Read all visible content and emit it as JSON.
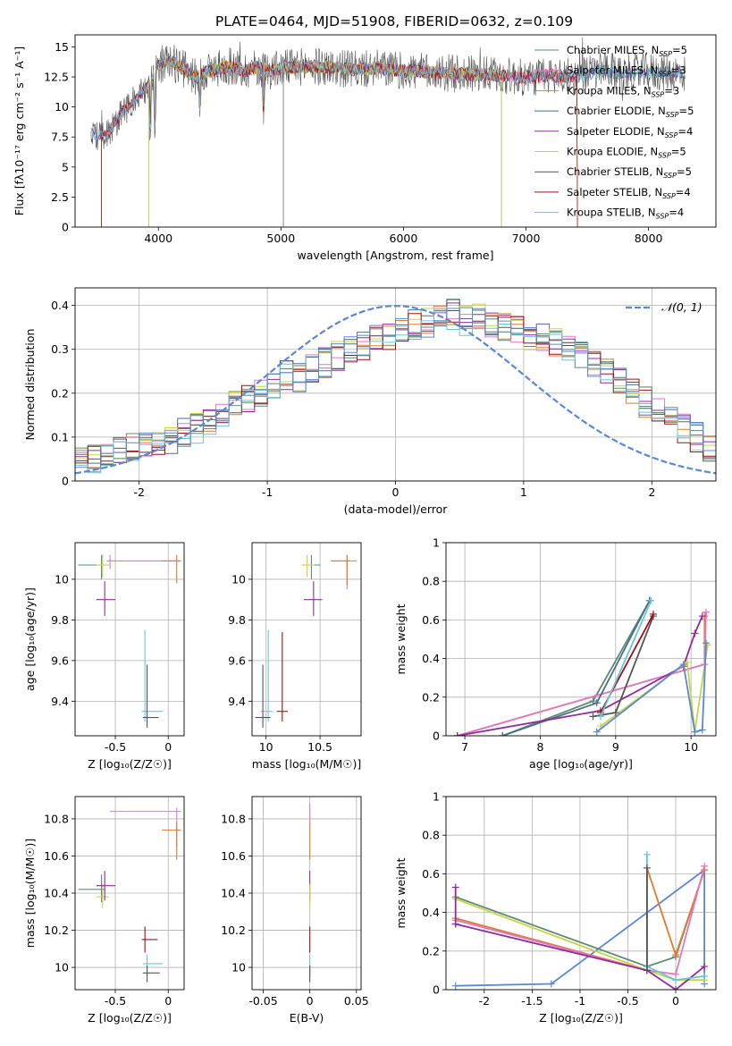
{
  "title": "PLATE=0464, MJD=51908, FIBERID=0632, z=0.109",
  "colors": {
    "series": [
      "#5b8a72",
      "#e377c2",
      "#e07a2d",
      "#4b6f8a",
      "#8e2c9c",
      "#c7d447",
      "#555555",
      "#a01010",
      "#66c6d6"
    ],
    "gaussian": "#5a87d4",
    "grid": "#b0b0b0"
  },
  "chart_data": [
    {
      "type": "line",
      "name": "spectrum",
      "xlabel": "wavelength [Angstrom, rest frame]",
      "ylabel": "Flux [fλ10⁻¹⁷ erg cm⁻² s⁻¹ A⁻¹]",
      "xlim": [
        3320,
        8550
      ],
      "ylim": [
        0,
        16
      ],
      "xticks": [
        4000,
        5000,
        6000,
        7000,
        8000
      ],
      "yticks": [
        0.0,
        2.5,
        5.0,
        7.5,
        10.0,
        12.5,
        15.0
      ],
      "grid": false,
      "legend_position": "top-right",
      "x": [
        3450,
        3500,
        3600,
        3700,
        3800,
        3900,
        4000,
        4100,
        4200,
        4300,
        4400,
        4500,
        4600,
        4700,
        4800,
        4900,
        5000,
        5200,
        5400,
        5600,
        5800,
        6000,
        6200,
        6400,
        6600,
        6800,
        7000,
        7200,
        7400,
        7600,
        7800,
        8000,
        8300
      ],
      "y": [
        8.0,
        7.5,
        7.8,
        9.5,
        10.5,
        11.5,
        13.5,
        13.8,
        13.2,
        12.5,
        13.0,
        13.2,
        13.4,
        13.0,
        13.3,
        13.0,
        13.2,
        13.4,
        13.3,
        13.1,
        13.2,
        13.0,
        12.9,
        12.8,
        12.7,
        12.6,
        12.4,
        12.6,
        12.5,
        13.0,
        12.8,
        12.9,
        12.8
      ],
      "series": [
        {
          "name": "Chabrier MILES, N_SSP=5",
          "label_main": "Chabrier MILES, N",
          "label_sub": "SSP",
          "label_tail": "=5"
        },
        {
          "name": "Salpeter MILES, N_SSP=3",
          "label_main": "Salpeter MILES, N",
          "label_sub": "SSP",
          "label_tail": "=3"
        },
        {
          "name": "Kroupa MILES, N_SSP=3",
          "label_main": "Kroupa MILES, N",
          "label_sub": "SSP",
          "label_tail": "=3"
        },
        {
          "name": "Chabrier ELODIE, N_SSP=5",
          "label_main": "Chabrier ELODIE, N",
          "label_sub": "SSP",
          "label_tail": "=5"
        },
        {
          "name": "Salpeter ELODIE, N_SSP=4",
          "label_main": "Salpeter ELODIE, N",
          "label_sub": "SSP",
          "label_tail": "=4"
        },
        {
          "name": "Kroupa ELODIE, N_SSP=5",
          "label_main": "Kroupa ELODIE, N",
          "label_sub": "SSP",
          "label_tail": "=5"
        },
        {
          "name": "Chabrier STELIB, N_SSP=5",
          "label_main": "Chabrier STELIB, N",
          "label_sub": "SSP",
          "label_tail": "=5"
        },
        {
          "name": "Salpeter STELIB, N_SSP=4",
          "label_main": "Salpeter STELIB, N",
          "label_sub": "SSP",
          "label_tail": "=4"
        },
        {
          "name": "Kroupa STELIB, N_SSP=4",
          "label_main": "Kroupa STELIB, N",
          "label_sub": "SSP",
          "label_tail": "=4"
        }
      ],
      "range_edges": [
        {
          "series": 2,
          "start": 3535,
          "end": 7420
        },
        {
          "series": 1,
          "start": 3535,
          "end": 7420
        },
        {
          "series": 5,
          "start": 3920,
          "end": 6800
        },
        {
          "series": 3,
          "start": 3920,
          "end": 6800
        },
        {
          "series": 7,
          "start": 3535,
          "end": 7420
        }
      ]
    },
    {
      "type": "histogram",
      "name": "residuals",
      "xlabel": "(data-model)/error",
      "ylabel": "Normed distribution",
      "xlim": [
        -2.5,
        2.5
      ],
      "ylim": [
        0,
        0.44
      ],
      "xticks": [
        -2,
        -1,
        0,
        1,
        2
      ],
      "yticks": [
        0.0,
        0.1,
        0.2,
        0.3,
        0.4
      ],
      "grid": true,
      "legend_position": "top-right",
      "legend": "𝒩(0, 1)",
      "bin_width": 0.1,
      "x_start": -2.5,
      "values": [
        0.045,
        0.05,
        0.06,
        0.075,
        0.08,
        0.09,
        0.085,
        0.095,
        0.11,
        0.12,
        0.14,
        0.155,
        0.17,
        0.19,
        0.205,
        0.22,
        0.24,
        0.235,
        0.255,
        0.27,
        0.285,
        0.3,
        0.31,
        0.32,
        0.33,
        0.34,
        0.355,
        0.36,
        0.37,
        0.38,
        0.365,
        0.37,
        0.36,
        0.35,
        0.34,
        0.33,
        0.33,
        0.315,
        0.3,
        0.29,
        0.26,
        0.245,
        0.225,
        0.2,
        0.18,
        0.155,
        0.135,
        0.12,
        0.1,
        0.08
      ],
      "jitter": 0.035
    },
    {
      "type": "errorbar",
      "name": "age-vs-Z",
      "xlabel": "Z [log₁₀(Z/Z☉)]",
      "ylabel": "age  [log₁₀(age/yr)]",
      "xlim": [
        -0.88,
        0.15
      ],
      "ylim": [
        9.23,
        10.18
      ],
      "xticks": [
        -0.5,
        0.0
      ],
      "yticks": [
        9.4,
        9.6,
        9.8,
        10.0
      ],
      "grid": true,
      "points": [
        {
          "c": 0,
          "x": -0.63,
          "y": 10.07,
          "xe": [
            -0.85,
            -0.6
          ],
          "ye": [
            10.0,
            10.12
          ]
        },
        {
          "c": 5,
          "x": -0.62,
          "y": 10.07,
          "xe": [
            -0.68,
            -0.56
          ],
          "ye": [
            10.01,
            10.12
          ]
        },
        {
          "c": 4,
          "x": -0.6,
          "y": 9.9,
          "xe": [
            -0.68,
            -0.5
          ],
          "ye": [
            9.82,
            9.99
          ]
        },
        {
          "c": 1,
          "x": -0.55,
          "y": 10.09,
          "xe": [
            -0.58,
            0.12
          ],
          "ye": [
            10.05,
            10.12
          ]
        },
        {
          "c": 2,
          "x": 0.08,
          "y": 10.09,
          "xe": [
            -0.06,
            0.12
          ],
          "ye": [
            9.98,
            10.12
          ]
        },
        {
          "c": 8,
          "x": -0.22,
          "y": 9.35,
          "xe": [
            -0.25,
            -0.05
          ],
          "ye": [
            9.3,
            9.75
          ]
        },
        {
          "c": 6,
          "x": -0.2,
          "y": 9.32,
          "xe": [
            -0.24,
            -0.09
          ],
          "ye": [
            9.27,
            9.58
          ]
        }
      ]
    },
    {
      "type": "errorbar",
      "name": "age-vs-mass",
      "xlabel": "mass [log₁₀(M/M☉)]",
      "ylabel": "",
      "xlim": [
        9.87,
        10.88
      ],
      "ylim": [
        9.23,
        10.18
      ],
      "xticks": [
        10.0,
        10.5
      ],
      "yticks": [
        9.4,
        9.6,
        9.8,
        10.0
      ],
      "grid": true,
      "points": [
        {
          "c": 0,
          "x": 10.42,
          "y": 10.07,
          "xe": [
            10.35,
            10.5
          ],
          "ye": [
            10.0,
            10.12
          ]
        },
        {
          "c": 5,
          "x": 10.38,
          "y": 10.07,
          "xe": [
            10.33,
            10.45
          ],
          "ye": [
            10.01,
            10.12
          ]
        },
        {
          "c": 4,
          "x": 10.44,
          "y": 9.9,
          "xe": [
            10.35,
            10.52
          ],
          "ye": [
            9.82,
            9.99
          ]
        },
        {
          "c": 1,
          "x": 10.75,
          "y": 10.09,
          "xe": [
            10.6,
            10.84
          ],
          "ye": [
            9.95,
            10.12
          ]
        },
        {
          "c": 2,
          "x": 10.75,
          "y": 10.09,
          "xe": [
            10.6,
            10.78
          ],
          "ye": [
            9.97,
            10.12
          ]
        },
        {
          "c": 8,
          "x": 10.02,
          "y": 9.35,
          "xe": [
            9.95,
            10.06
          ],
          "ye": [
            9.3,
            9.75
          ]
        },
        {
          "c": 7,
          "x": 10.15,
          "y": 9.35,
          "xe": [
            10.1,
            10.2
          ],
          "ye": [
            9.3,
            9.74
          ]
        },
        {
          "c": 6,
          "x": 9.97,
          "y": 9.32,
          "xe": [
            9.9,
            10.04
          ],
          "ye": [
            9.27,
            9.58
          ]
        }
      ]
    },
    {
      "type": "line",
      "name": "weight-vs-age",
      "xlabel": "age  [log₁₀(age/yr)]",
      "ylabel": "mass weight",
      "xlim": [
        6.75,
        10.33
      ],
      "ylim": [
        0.0,
        1.0
      ],
      "xticks": [
        7,
        8,
        9,
        10
      ],
      "yticks": [
        0.0,
        0.2,
        0.4,
        0.6,
        0.8,
        1.0
      ],
      "grid": true,
      "series": [
        {
          "c": 0,
          "x": [
            7.5,
            8.7,
            9.45
          ],
          "y": [
            0.0,
            0.18,
            0.7
          ]
        },
        {
          "c": 2,
          "x": [
            6.9,
            10.18,
            10.18
          ],
          "y": [
            0.0,
            0.37,
            0.62
          ]
        },
        {
          "c": 1,
          "x": [
            6.9,
            10.18,
            10.2
          ],
          "y": [
            0.0,
            0.37,
            0.64
          ]
        },
        {
          "c": 3,
          "x": [
            7.5,
            8.75,
            9.45
          ],
          "y": [
            0.0,
            0.17,
            0.7
          ]
        },
        {
          "c": 4,
          "x": [
            6.9,
            8.8,
            9.9,
            10.05,
            10.15
          ],
          "y": [
            0.0,
            0.13,
            0.36,
            0.53,
            0.62
          ]
        },
        {
          "c": 5,
          "x": [
            8.8,
            9.95,
            10.05,
            10.22
          ],
          "y": [
            0.05,
            0.38,
            0.02,
            0.47
          ]
        },
        {
          "c": 6,
          "x": [
            8.7,
            9.0,
            9.5
          ],
          "y": [
            0.1,
            0.12,
            0.62
          ]
        },
        {
          "c": 7,
          "x": [
            8.8,
            9.5
          ],
          "y": [
            0.12,
            0.63
          ]
        },
        {
          "c": 8,
          "x": [
            8.8,
            9.47
          ],
          "y": [
            0.1,
            0.7
          ]
        },
        {
          "c": 9,
          "x": [
            8.75,
            9.9,
            10.05,
            10.15,
            10.2
          ],
          "y": [
            0.02,
            0.37,
            0.02,
            0.03,
            0.48
          ]
        }
      ]
    },
    {
      "type": "errorbar",
      "name": "mass-vs-Z",
      "xlabel": "Z [log₁₀(Z/Z☉)]",
      "ylabel": "mass [log₁₀(M/M☉)]",
      "xlim": [
        -0.88,
        0.15
      ],
      "ylim": [
        9.88,
        10.92
      ],
      "xticks": [
        -0.5,
        0.0
      ],
      "yticks": [
        10.0,
        10.2,
        10.4,
        10.6,
        10.8
      ],
      "grid": true,
      "points": [
        {
          "c": 0,
          "x": -0.63,
          "y": 10.42,
          "xe": [
            -0.85,
            -0.6
          ],
          "ye": [
            10.35,
            10.5
          ]
        },
        {
          "c": 5,
          "x": -0.62,
          "y": 10.38,
          "xe": [
            -0.68,
            -0.56
          ],
          "ye": [
            10.32,
            10.45
          ]
        },
        {
          "c": 4,
          "x": -0.6,
          "y": 10.44,
          "xe": [
            -0.68,
            -0.5
          ],
          "ye": [
            10.36,
            10.52
          ]
        },
        {
          "c": 1,
          "x": 0.08,
          "y": 10.84,
          "xe": [
            -0.55,
            0.12
          ],
          "ye": [
            10.65,
            10.86
          ]
        },
        {
          "c": 2,
          "x": 0.08,
          "y": 10.74,
          "xe": [
            -0.06,
            0.12
          ],
          "ye": [
            10.58,
            10.78
          ]
        },
        {
          "c": 7,
          "x": -0.22,
          "y": 10.15,
          "xe": [
            -0.25,
            -0.1
          ],
          "ye": [
            10.08,
            10.22
          ]
        },
        {
          "c": 8,
          "x": -0.2,
          "y": 10.02,
          "xe": [
            -0.24,
            -0.05
          ],
          "ye": [
            9.95,
            10.07
          ]
        },
        {
          "c": 6,
          "x": -0.2,
          "y": 9.97,
          "xe": [
            -0.24,
            -0.08
          ],
          "ye": [
            9.92,
            10.01
          ]
        }
      ]
    },
    {
      "type": "errorbar",
      "name": "mass-vs-EBV",
      "xlabel": "E(B-V)",
      "ylabel": "",
      "xlim": [
        -0.062,
        0.055
      ],
      "ylim": [
        9.88,
        10.92
      ],
      "xticks": [
        -0.05,
        0.0,
        0.05
      ],
      "yticks": [
        10.0,
        10.2,
        10.4,
        10.6,
        10.8
      ],
      "grid": true,
      "points": [
        {
          "c": 1,
          "x": 0.0,
          "y": 10.84,
          "xe": [
            0.0,
            0.0
          ],
          "ye": [
            10.78,
            10.88
          ]
        },
        {
          "c": 2,
          "x": 0.0,
          "y": 10.74,
          "xe": [
            0.0,
            0.0
          ],
          "ye": [
            10.58,
            10.78
          ]
        },
        {
          "c": 4,
          "x": 0.0,
          "y": 10.44,
          "xe": [
            0.0,
            0.0
          ],
          "ye": [
            10.36,
            10.52
          ]
        },
        {
          "c": 5,
          "x": 0.0,
          "y": 10.38,
          "xe": [
            0.0,
            0.0
          ],
          "ye": [
            10.32,
            10.45
          ]
        },
        {
          "c": 7,
          "x": 0.0,
          "y": 10.15,
          "xe": [
            0.0,
            0.0
          ],
          "ye": [
            10.08,
            10.22
          ]
        },
        {
          "c": 8,
          "x": 0.0,
          "y": 10.02,
          "xe": [
            0.0,
            0.0
          ],
          "ye": [
            9.95,
            10.07
          ]
        },
        {
          "c": 6,
          "x": 0.0,
          "y": 9.97,
          "xe": [
            0.0,
            0.0
          ],
          "ye": [
            9.92,
            10.01
          ]
        }
      ]
    },
    {
      "type": "line",
      "name": "weight-vs-Z",
      "xlabel": "Z [log₁₀(Z/Z☉)]",
      "ylabel": "mass weight",
      "xlim": [
        -2.4,
        0.42
      ],
      "ylim": [
        0.0,
        1.0
      ],
      "xticks": [
        -2.0,
        -1.5,
        -1.0,
        -0.5,
        0.0
      ],
      "yticks": [
        0.0,
        0.2,
        0.4,
        0.6,
        0.8,
        1.0
      ],
      "grid": true,
      "series": [
        {
          "c": 9,
          "x": [
            -2.3,
            -1.3,
            0.3,
            0.3
          ],
          "y": [
            0.02,
            0.03,
            0.62,
            0.03
          ]
        },
        {
          "c": 0,
          "x": [
            -2.3,
            -0.3,
            0.0,
            0.3
          ],
          "y": [
            0.48,
            0.12,
            0.17,
            0.62
          ]
        },
        {
          "c": 5,
          "x": [
            -2.3,
            -0.3,
            0.0,
            0.3
          ],
          "y": [
            0.47,
            0.1,
            0.05,
            0.05
          ]
        },
        {
          "c": 2,
          "x": [
            -2.3,
            -0.3,
            -0.3,
            0.0,
            0.3
          ],
          "y": [
            0.37,
            0.1,
            0.63,
            0.18,
            0.62
          ]
        },
        {
          "c": 1,
          "x": [
            -2.3,
            -0.3,
            0.0,
            0.3
          ],
          "y": [
            0.36,
            0.1,
            0.08,
            0.64
          ]
        },
        {
          "c": 4,
          "x": [
            -2.3,
            -0.3,
            0.0,
            0.3
          ],
          "y": [
            0.34,
            0.1,
            0.0,
            0.12
          ]
        },
        {
          "c": 8,
          "x": [
            -0.3,
            -0.3,
            0.0,
            0.3
          ],
          "y": [
            0.7,
            0.12,
            0.05,
            0.07
          ]
        },
        {
          "c": 6,
          "x": [
            -0.3,
            -0.3
          ],
          "y": [
            0.63,
            0.1
          ]
        },
        {
          "c": 4,
          "x": [
            -2.3,
            -2.3
          ],
          "y": [
            0.34,
            0.53
          ]
        }
      ]
    }
  ]
}
